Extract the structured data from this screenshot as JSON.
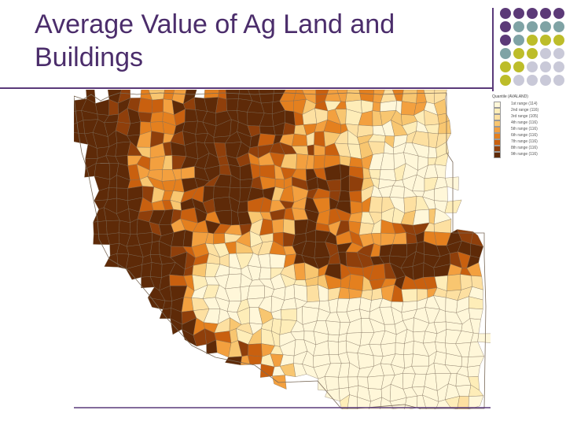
{
  "slide": {
    "title": "Average Value of Ag Land and Buildings",
    "colors": {
      "title": "#4b2d6b",
      "rule": "#5a3a7a",
      "purple": "#5c3a78",
      "teal": "#7fa3a5",
      "olive": "#bdbd2a",
      "lavender": "#c9c9d8"
    }
  },
  "decoration": {
    "dot_rows": [
      [
        "purple",
        "purple",
        "purple",
        "purple",
        "purple"
      ],
      [
        "purple",
        "teal",
        "teal",
        "teal",
        "teal"
      ],
      [
        "purple",
        "teal",
        "olive",
        "olive",
        "olive"
      ],
      [
        "teal",
        "olive",
        "olive",
        "lavender",
        "lavender"
      ],
      [
        "olive",
        "olive",
        "lavender",
        "lavender",
        "lavender"
      ],
      [
        "olive",
        "lavender",
        "lavender",
        "lavender",
        "lavender"
      ]
    ]
  },
  "map": {
    "region": "Western United States (county level)",
    "palette": [
      "#fff7d9",
      "#feedb8",
      "#fde0a1",
      "#f8c670",
      "#f3a03f",
      "#e4801f",
      "#c9600f",
      "#8f3f0b",
      "#5e2a08"
    ],
    "legend": {
      "title": "Quantile (AVALAND)",
      "items": [
        {
          "label": "1st range (114)",
          "color": "#fff7d9"
        },
        {
          "label": "2nd range (116)",
          "color": "#feedb8"
        },
        {
          "label": "3rd range (105)",
          "color": "#fde0a1"
        },
        {
          "label": "4th range (116)",
          "color": "#f8c670"
        },
        {
          "label": "5th range (116)",
          "color": "#f3a03f"
        },
        {
          "label": "6th range (116)",
          "color": "#e4801f"
        },
        {
          "label": "7th range (116)",
          "color": "#c9600f"
        },
        {
          "label": "8th range (116)",
          "color": "#8f3f0b"
        },
        {
          "label": "9th range (116)",
          "color": "#5e2a08"
        }
      ]
    }
  }
}
